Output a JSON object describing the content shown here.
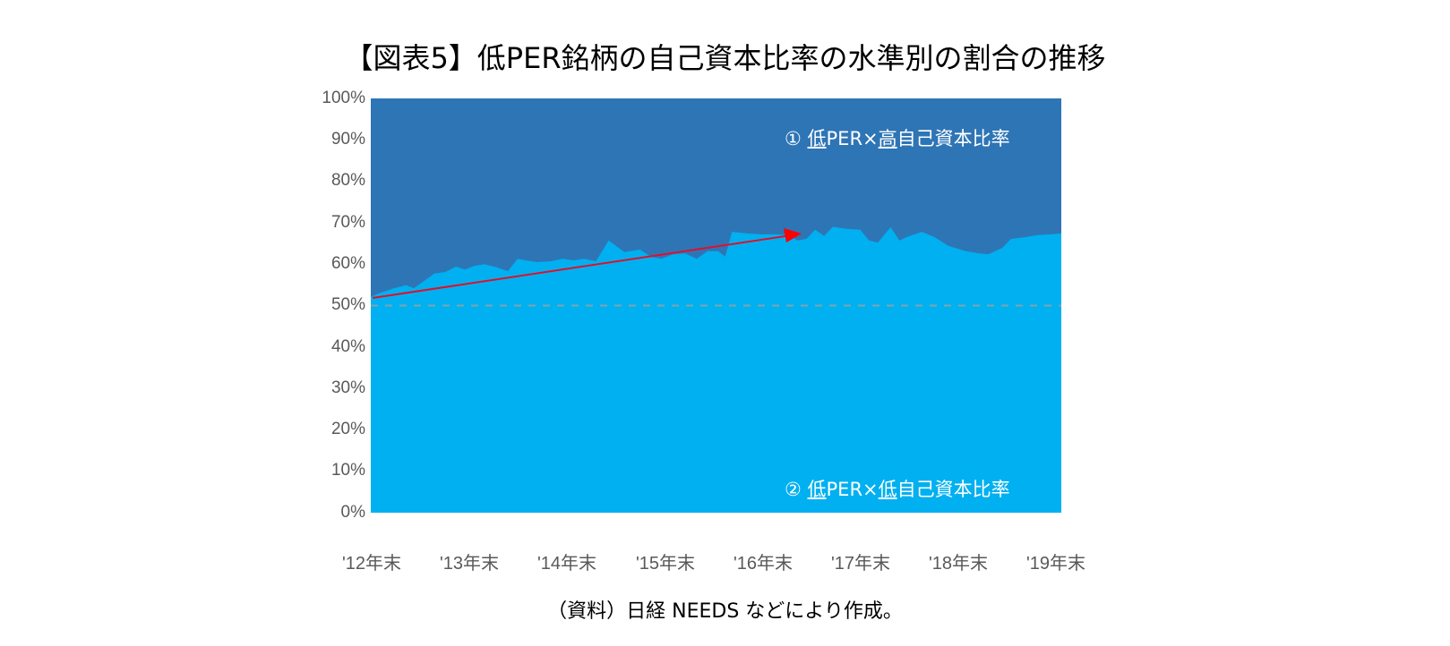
{
  "title": "【図表5】低PER銘柄の自己資本比率の水準別の割合の推移",
  "source_note": "（資料）日経 NEEDS などにより作成。",
  "colors": {
    "high_equity_ratio": "#2E75B6",
    "low_equity_ratio": "#00B0F0",
    "trend_arrow": "#FF0000",
    "reference_line": "#A0A0A0",
    "axis_text": "#595959"
  },
  "annotations": {
    "upper_label": {
      "prefix": "① ",
      "low": "低",
      "mid": "PER×",
      "key": "高",
      "suffix": "自己資本比率"
    },
    "lower_label": {
      "prefix": "② ",
      "low": "低",
      "mid": "PER×",
      "key": "低",
      "suffix": "自己資本比率"
    }
  },
  "chart_data": {
    "type": "area",
    "stacked": true,
    "percent_stacked": true,
    "title": "【図表5】低PER銘柄の自己資本比率の水準別の割合の推移",
    "xlabel": "",
    "ylabel": "",
    "ylim": [
      0,
      100
    ],
    "yticks": [
      "0%",
      "10%",
      "20%",
      "30%",
      "40%",
      "50%",
      "60%",
      "70%",
      "80%",
      "90%",
      "100%"
    ],
    "xticks": [
      "'12年末",
      "'13年末",
      "'14年末",
      "'15年末",
      "'16年末",
      "'17年末",
      "'18年末",
      "'19年末"
    ],
    "grid": false,
    "legend": "inline labels",
    "reference_line": {
      "y": 50,
      "style": "dashed"
    },
    "trend_arrow": {
      "from": {
        "x": "'12年末",
        "y": 52
      },
      "to": {
        "x": "'16年 (mid)",
        "y": 67.5
      },
      "color": "#FF0000"
    },
    "x_positions": [
      0,
      0.1,
      0.24,
      0.36,
      0.44,
      0.56,
      0.65,
      0.76,
      0.87,
      0.96,
      1.06,
      1.16,
      1.29,
      1.4,
      1.5,
      1.58,
      1.7,
      1.84,
      1.96,
      2.07,
      2.18,
      2.3,
      2.43,
      2.59,
      2.75,
      2.86,
      2.97,
      3.09,
      3.21,
      3.33,
      3.44,
      3.55,
      3.62,
      3.69,
      3.85,
      3.99,
      4.13,
      4.27,
      4.36,
      4.45,
      4.54,
      4.63,
      4.72,
      4.86,
      5.0,
      5.09,
      5.18,
      5.31,
      5.4,
      5.49,
      5.63,
      5.76,
      5.9,
      6.08,
      6.22,
      6.31,
      6.45,
      6.54,
      6.68,
      6.81,
      6.95,
      7.05
    ],
    "series": [
      {
        "name": "② 低PER×低自己資本比率",
        "color": "#00B0F0",
        "values": [
          52.1,
          53.1,
          54.2,
          54.9,
          54.2,
          56.2,
          57.7,
          58.1,
          59.4,
          58.7,
          59.6,
          60.0,
          59.2,
          58.3,
          61.3,
          60.9,
          60.5,
          60.7,
          61.3,
          60.9,
          61.3,
          60.7,
          65.7,
          62.9,
          63.5,
          61.8,
          61.3,
          62.4,
          62.6,
          61.3,
          63.1,
          63.1,
          61.8,
          67.8,
          67.4,
          67.2,
          67.2,
          67.0,
          65.7,
          66.1,
          68.3,
          66.8,
          69.0,
          68.5,
          68.3,
          65.7,
          65.2,
          68.9,
          65.7,
          66.7,
          67.8,
          66.5,
          64.4,
          63.1,
          62.6,
          62.4,
          63.9,
          66.1,
          66.5,
          67.0,
          67.2,
          67.4
        ]
      },
      {
        "name": "① 低PER×高自己資本比率",
        "color": "#2E75B6",
        "values": [
          47.9,
          46.9,
          45.8,
          45.1,
          45.8,
          43.8,
          42.3,
          41.9,
          40.6,
          41.3,
          40.4,
          40.0,
          40.8,
          41.7,
          38.7,
          39.1,
          39.5,
          39.3,
          38.7,
          39.1,
          38.7,
          39.3,
          34.3,
          37.1,
          36.5,
          38.2,
          38.7,
          37.6,
          37.4,
          38.7,
          36.9,
          36.9,
          38.2,
          32.2,
          32.6,
          32.8,
          32.8,
          33.0,
          34.3,
          33.9,
          31.7,
          33.2,
          31.0,
          31.5,
          31.7,
          34.3,
          34.8,
          31.1,
          34.3,
          33.3,
          32.2,
          33.5,
          35.6,
          36.9,
          37.4,
          37.6,
          36.1,
          33.9,
          33.5,
          33.0,
          32.8,
          32.6
        ]
      }
    ]
  }
}
